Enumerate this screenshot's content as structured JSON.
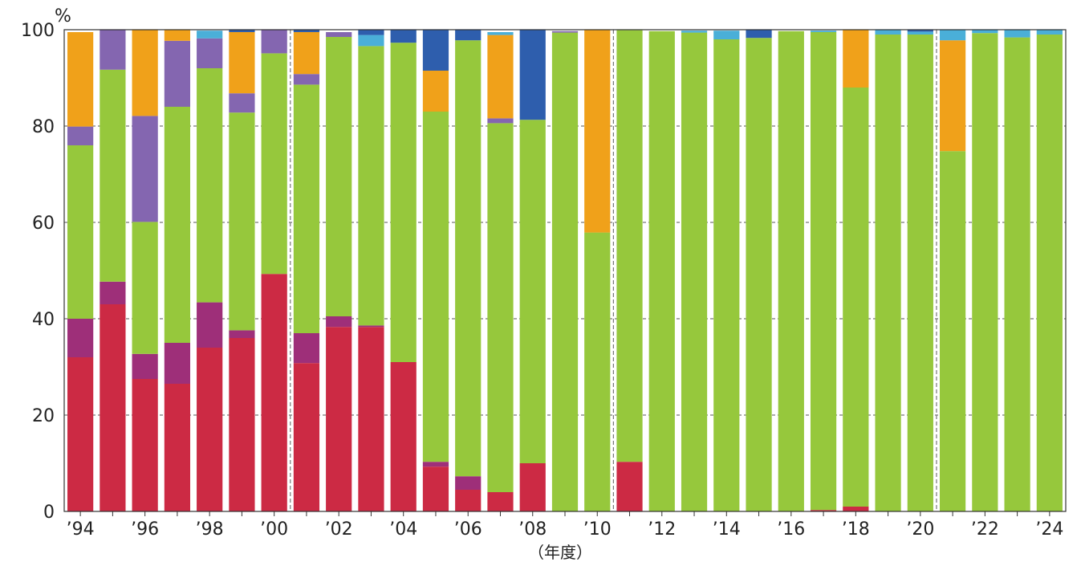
{
  "chart_data": {
    "type": "bar",
    "stacked": true,
    "unit": "%",
    "xlabel": "（年度）",
    "ylabel": "",
    "ylim": [
      0,
      100
    ],
    "yticks": [
      "0",
      "20",
      "40",
      "60",
      "80",
      "100"
    ],
    "grid": "horizontal dashed",
    "categories": [
      "1994",
      "1995",
      "1996",
      "1997",
      "1998",
      "1999",
      "2000",
      "2001",
      "2002",
      "2003",
      "2004",
      "2005",
      "2006",
      "2007",
      "2008",
      "2009",
      "2010",
      "2011",
      "2012",
      "2013",
      "2014",
      "2015",
      "2016",
      "2017",
      "2018",
      "2019",
      "2020",
      "2021",
      "2022",
      "2023",
      "2024"
    ],
    "xtick_labels": [
      "’94",
      "",
      "’96",
      "",
      "’98",
      "",
      "’00",
      "",
      "’02",
      "",
      "’04",
      "",
      "’06",
      "",
      "’08",
      "",
      "’10",
      "",
      "’12",
      "",
      "’14",
      "",
      "’16",
      "",
      "’18",
      "",
      "’20",
      "",
      "’22",
      "",
      "’24"
    ],
    "dividers_after": [
      "2000",
      "2010",
      "2020"
    ],
    "series": [
      {
        "color": "#cc2a44",
        "values": [
          32,
          43,
          27.5,
          26.5,
          34,
          36,
          49.3,
          30.8,
          38.3,
          38.3,
          31,
          9.3,
          4.5,
          4,
          10,
          0,
          0,
          10.3,
          0,
          0,
          0,
          0,
          0,
          0.3,
          1,
          0,
          0,
          0,
          0,
          0,
          0
        ]
      },
      {
        "color": "#9e2f79",
        "values": [
          8,
          4.7,
          5.2,
          8.5,
          9.4,
          1.6,
          0,
          6.2,
          2.2,
          0.3,
          0,
          1,
          2.8,
          0,
          0,
          0,
          0,
          0,
          0,
          0,
          0,
          0,
          0,
          0,
          0,
          0,
          0,
          0,
          0,
          0,
          0
        ]
      },
      {
        "color": "#96c83c",
        "values": [
          36,
          44,
          27.4,
          49,
          48.6,
          45.2,
          45.8,
          51.6,
          58,
          58,
          66.3,
          72.7,
          90.5,
          76.6,
          71.3,
          99.4,
          57.9,
          89.6,
          99.7,
          99.4,
          98,
          98.3,
          99.7,
          99.2,
          87,
          99,
          99,
          74.8,
          99.3,
          98.4,
          99
        ]
      },
      {
        "color": "#8466b0",
        "values": [
          3.9,
          8.3,
          22,
          13.7,
          6.2,
          4,
          4.9,
          2.2,
          1,
          0,
          0,
          0,
          0,
          1,
          0,
          0.3,
          0,
          0,
          0,
          0,
          0,
          0,
          0,
          0,
          0,
          0,
          0,
          0,
          0,
          0,
          0
        ]
      },
      {
        "color": "#f0a11a",
        "values": [
          19.6,
          0,
          17.9,
          2.3,
          0,
          12.7,
          0,
          8.7,
          0,
          0,
          0,
          8.5,
          0,
          17.3,
          0,
          0,
          42.1,
          0,
          0,
          0,
          0,
          0,
          0,
          0,
          12,
          0,
          0,
          23,
          0,
          0,
          0
        ]
      },
      {
        "color": "#4aafd8",
        "values": [
          0,
          0,
          0,
          0,
          1.6,
          0,
          0,
          0,
          0,
          2.3,
          0,
          0,
          0,
          0.6,
          0,
          0,
          0,
          0,
          0,
          0.4,
          1.8,
          0,
          0,
          0.3,
          0,
          1,
          0.6,
          2.2,
          0.7,
          1.6,
          1
        ]
      },
      {
        "color": "#2e5ead",
        "values": [
          0,
          0,
          0,
          0,
          0,
          0.5,
          0,
          0.5,
          0,
          1.1,
          2.7,
          8.5,
          2.2,
          0,
          18.7,
          0,
          0,
          0,
          0,
          0,
          0,
          1.7,
          0,
          0,
          0,
          0,
          0.4,
          0,
          0,
          0,
          0
        ]
      }
    ]
  }
}
